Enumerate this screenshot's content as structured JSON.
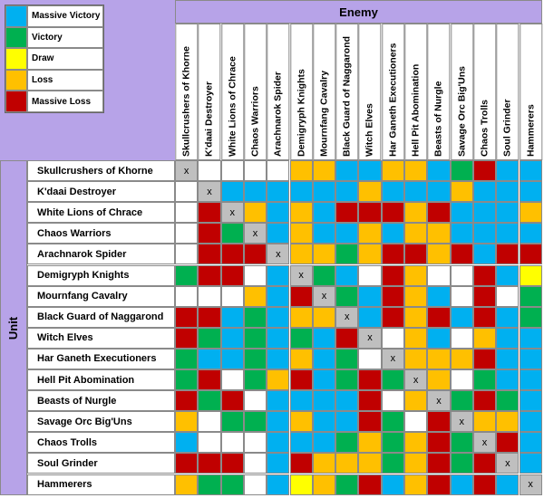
{
  "legend": [
    {
      "label": "Massive Victory",
      "color": "#00b0f0"
    },
    {
      "label": "Victory",
      "color": "#00b050"
    },
    {
      "label": "Draw",
      "color": "#ffff00"
    },
    {
      "label": "Loss",
      "color": "#ffc000"
    },
    {
      "label": "Massive Loss",
      "color": "#c00000"
    }
  ],
  "enemy_header": "Enemy",
  "unit_header": "Unit",
  "columns": [
    "Skullcrushers of Khorne",
    "K'daai Destroyer",
    "White Lions of Chrace",
    "Chaos Warriors",
    "Arachnarok Spider",
    "Demigryph Knights",
    "Mournfang Cavalry",
    "Black Guard of Naggarond",
    "Witch Elves",
    "Har Ganeth Executioners",
    "Hell Pit Abomination",
    "Beasts of Nurgle",
    "Savage Orc Big'Uns",
    "Chaos Trolls",
    "Soul Grinder",
    "Hammerers"
  ],
  "rows": [
    {
      "name": "Skullcrushers of Khorne",
      "cells": [
        "x",
        "#ffffff",
        "#ffffff",
        "#ffffff",
        "#ffffff",
        "#ffc000",
        "#ffc000",
        "#00b0f0",
        "#00b0f0",
        "#ffc000",
        "#ffc000",
        "#00b0f0",
        "#00b050",
        "#c00000",
        "#00b0f0",
        "#00b0f0"
      ]
    },
    {
      "name": "K'daai Destroyer",
      "cells": [
        "#ffffff",
        "x",
        "#00b0f0",
        "#00b0f0",
        "#00b0f0",
        "#00b0f0",
        "#00b0f0",
        "#00b0f0",
        "#ffc000",
        "#00b0f0",
        "#00b0f0",
        "#00b0f0",
        "#ffc000",
        "#00b0f0",
        "#00b0f0",
        "#00b0f0"
      ]
    },
    {
      "name": "White Lions of Chrace",
      "cells": [
        "#ffffff",
        "#c00000",
        "x",
        "#ffc000",
        "#00b0f0",
        "#ffc000",
        "#00b0f0",
        "#c00000",
        "#c00000",
        "#c00000",
        "#ffc000",
        "#c00000",
        "#00b0f0",
        "#00b0f0",
        "#00b0f0",
        "#ffc000"
      ]
    },
    {
      "name": "Chaos Warriors",
      "cells": [
        "#ffffff",
        "#c00000",
        "#00b050",
        "x",
        "#00b0f0",
        "#ffc000",
        "#00b0f0",
        "#00b0f0",
        "#ffc000",
        "#00b0f0",
        "#ffc000",
        "#ffc000",
        "#00b0f0",
        "#00b0f0",
        "#00b0f0",
        "#00b0f0"
      ]
    },
    {
      "name": "Arachnarok Spider",
      "cells": [
        "#ffffff",
        "#c00000",
        "#c00000",
        "#c00000",
        "x",
        "#ffc000",
        "#ffc000",
        "#00b050",
        "#ffc000",
        "#c00000",
        "#c00000",
        "#ffc000",
        "#c00000",
        "#00b0f0",
        "#c00000",
        "#c00000"
      ]
    },
    {
      "name": "Demigryph Knights",
      "cells": [
        "#00b050",
        "#c00000",
        "#c00000",
        "#ffffff",
        "#00b0f0",
        "x",
        "#00b050",
        "#00b0f0",
        "#ffffff",
        "#c00000",
        "#ffc000",
        "#ffffff",
        "#ffffff",
        "#c00000",
        "#00b0f0",
        "#ffff00"
      ]
    },
    {
      "name": "Mournfang Cavalry",
      "cells": [
        "#ffffff",
        "#ffffff",
        "#ffffff",
        "#ffc000",
        "#00b0f0",
        "#c00000",
        "x",
        "#00b050",
        "#00b0f0",
        "#c00000",
        "#ffc000",
        "#00b0f0",
        "#ffffff",
        "#c00000",
        "#ffffff",
        "#00b050"
      ]
    },
    {
      "name": "Black Guard of Naggarond",
      "cells": [
        "#c00000",
        "#c00000",
        "#00b0f0",
        "#00b050",
        "#00b0f0",
        "#ffc000",
        "#ffc000",
        "x",
        "#00b0f0",
        "#c00000",
        "#ffc000",
        "#c00000",
        "#00b0f0",
        "#c00000",
        "#00b0f0",
        "#00b050"
      ]
    },
    {
      "name": "Witch Elves",
      "cells": [
        "#c00000",
        "#00b050",
        "#00b0f0",
        "#00b050",
        "#00b0f0",
        "#00b050",
        "#00b0f0",
        "#c00000",
        "x",
        "#ffffff",
        "#ffc000",
        "#00b0f0",
        "#ffffff",
        "#ffc000",
        "#00b0f0",
        "#00b0f0"
      ]
    },
    {
      "name": "Har Ganeth Executioners",
      "cells": [
        "#00b050",
        "#00b0f0",
        "#00b0f0",
        "#00b050",
        "#00b0f0",
        "#ffc000",
        "#00b0f0",
        "#00b050",
        "#ffffff",
        "x",
        "#ffc000",
        "#ffc000",
        "#ffc000",
        "#c00000",
        "#00b0f0",
        "#00b0f0"
      ]
    },
    {
      "name": "Hell Pit Abomination",
      "cells": [
        "#00b050",
        "#c00000",
        "#ffffff",
        "#00b050",
        "#ffc000",
        "#c00000",
        "#00b0f0",
        "#00b050",
        "#c00000",
        "#00b050",
        "x",
        "#ffc000",
        "#ffffff",
        "#00b050",
        "#00b0f0",
        "#00b0f0"
      ]
    },
    {
      "name": "Beasts of Nurgle",
      "cells": [
        "#c00000",
        "#00b050",
        "#c00000",
        "#ffffff",
        "#00b0f0",
        "#00b0f0",
        "#00b0f0",
        "#00b0f0",
        "#c00000",
        "#ffffff",
        "#ffc000",
        "x",
        "#00b050",
        "#c00000",
        "#00b050",
        "#00b0f0"
      ]
    },
    {
      "name": "Savage Orc Big'Uns",
      "cells": [
        "#ffc000",
        "#ffffff",
        "#00b050",
        "#00b050",
        "#00b0f0",
        "#ffc000",
        "#00b0f0",
        "#00b0f0",
        "#c00000",
        "#00b050",
        "#ffffff",
        "#c00000",
        "x",
        "#ffc000",
        "#ffc000",
        "#00b0f0"
      ]
    },
    {
      "name": "Chaos Trolls",
      "cells": [
        "#00b0f0",
        "#ffffff",
        "#ffffff",
        "#ffffff",
        "#00b0f0",
        "#00b0f0",
        "#00b0f0",
        "#00b050",
        "#ffc000",
        "#00b050",
        "#ffc000",
        "#c00000",
        "#00b050",
        "x",
        "#c00000",
        "#00b0f0"
      ]
    },
    {
      "name": "Soul Grinder",
      "cells": [
        "#c00000",
        "#c00000",
        "#c00000",
        "#ffffff",
        "#00b0f0",
        "#c00000",
        "#ffc000",
        "#ffc000",
        "#ffc000",
        "#00b050",
        "#ffc000",
        "#c00000",
        "#00b050",
        "#c00000",
        "x",
        "#00b0f0"
      ]
    },
    {
      "name": "Hammerers",
      "cells": [
        "#ffc000",
        "#00b050",
        "#00b050",
        "#ffffff",
        "#00b0f0",
        "#ffff00",
        "#ffc000",
        "#00b050",
        "#c00000",
        "#00b0f0",
        "#ffc000",
        "#c00000",
        "#00b0f0",
        "#c00000",
        "#00b0f0",
        "x"
      ]
    }
  ]
}
